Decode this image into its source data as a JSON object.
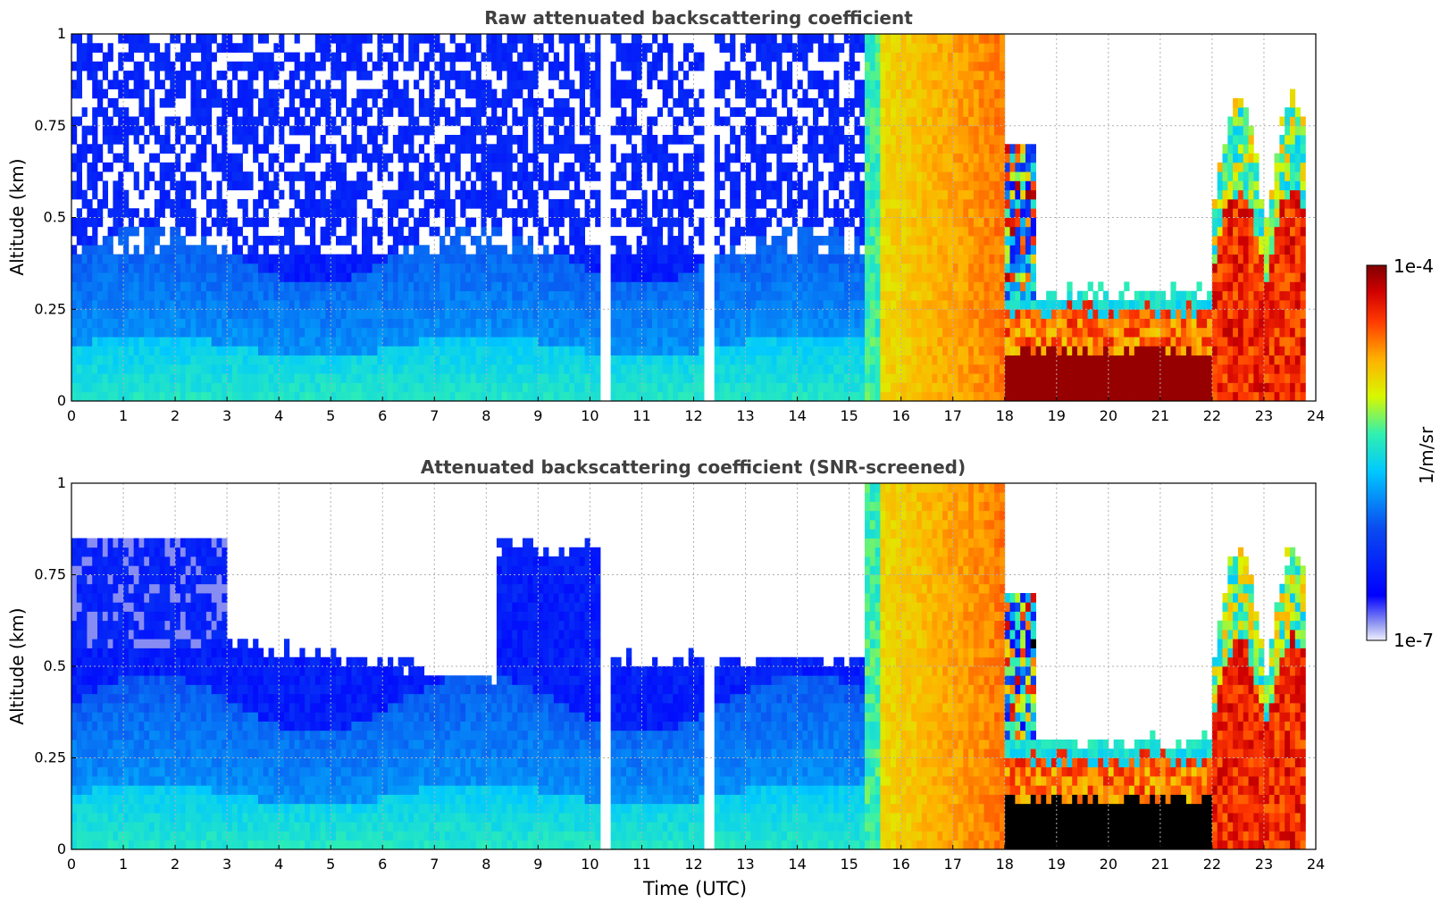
{
  "figure": {
    "xlabel": "Time (UTC)",
    "colorbar": {
      "label": "1/m/sr",
      "max_label": "1e-4",
      "min_label": "1e-7",
      "scale": "log",
      "range": [
        1e-07,
        0.0001
      ],
      "colormap": "jet"
    }
  },
  "chart_data": [
    {
      "type": "heatmap",
      "title": "Raw attenuated backscattering coefficient",
      "xlabel": "",
      "ylabel": "Altitude (km)",
      "xlim": [
        0,
        24
      ],
      "ylim": [
        0,
        1
      ],
      "xticks": [
        "0",
        "1",
        "2",
        "3",
        "4",
        "5",
        "6",
        "7",
        "8",
        "9",
        "10",
        "11",
        "12",
        "13",
        "14",
        "15",
        "16",
        "17",
        "18",
        "19",
        "20",
        "21",
        "22",
        "23",
        "24"
      ],
      "yticks": [
        "0",
        "0.25",
        "0.5",
        "0.75",
        "1"
      ],
      "grid": true,
      "variant": "raw",
      "data_gaps_utc": [
        [
          10.15,
          10.45
        ],
        [
          12.2,
          12.45
        ]
      ]
    },
    {
      "type": "heatmap",
      "title": "Attenuated backscattering coefficient (SNR-screened)",
      "xlabel": "Time (UTC)",
      "ylabel": "Altitude (km)",
      "xlim": [
        0,
        24
      ],
      "ylim": [
        0,
        1
      ],
      "xticks": [
        "0",
        "1",
        "2",
        "3",
        "4",
        "5",
        "6",
        "7",
        "8",
        "9",
        "10",
        "11",
        "12",
        "13",
        "14",
        "15",
        "16",
        "17",
        "18",
        "19",
        "20",
        "21",
        "22",
        "23",
        "24"
      ],
      "yticks": [
        "0",
        "0.25",
        "0.5",
        "0.75",
        "1"
      ],
      "grid": true,
      "variant": "screened",
      "data_gaps_utc": [
        [
          10.15,
          10.45
        ],
        [
          12.2,
          12.45
        ]
      ]
    }
  ]
}
